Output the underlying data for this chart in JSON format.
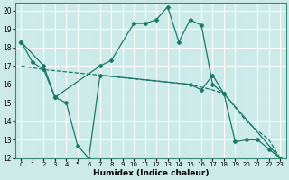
{
  "xlabel": "Humidex (Indice chaleur)",
  "bg_color": "#cceae8",
  "grid_color": "#ffffff",
  "line_color": "#1a7868",
  "xlim": [
    -0.5,
    23.5
  ],
  "ylim": [
    12,
    20.4
  ],
  "xticks": [
    0,
    1,
    2,
    3,
    4,
    5,
    6,
    7,
    8,
    9,
    10,
    11,
    12,
    13,
    14,
    15,
    16,
    17,
    18,
    19,
    20,
    21,
    22,
    23
  ],
  "yticks": [
    12,
    13,
    14,
    15,
    16,
    17,
    18,
    19,
    20
  ],
  "lines": [
    {
      "x": [
        0,
        1,
        2,
        3,
        7,
        8,
        10,
        11,
        12,
        13,
        14,
        15,
        16,
        17,
        18,
        19,
        20,
        21,
        22,
        23
      ],
      "y": [
        18.3,
        17.2,
        16.8,
        15.3,
        17.0,
        17.3,
        19.3,
        19.3,
        19.5,
        20.2,
        18.3,
        19.5,
        19.2,
        16.0,
        15.5,
        12.9,
        13.0,
        13.0,
        12.5,
        12.0
      ]
    },
    {
      "x": [
        0,
        2,
        7,
        10,
        15,
        17,
        18,
        20,
        22,
        23
      ],
      "y": [
        17.0,
        16.8,
        16.5,
        16.3,
        16.0,
        15.7,
        15.5,
        14.0,
        13.0,
        12.0
      ]
    },
    {
      "x": [
        0,
        2,
        3,
        4,
        5,
        6,
        7,
        15,
        16,
        17,
        18,
        23
      ],
      "y": [
        18.3,
        17.0,
        15.3,
        15.0,
        12.7,
        12.0,
        16.5,
        16.0,
        15.7,
        16.5,
        15.5,
        12.0
      ]
    }
  ]
}
